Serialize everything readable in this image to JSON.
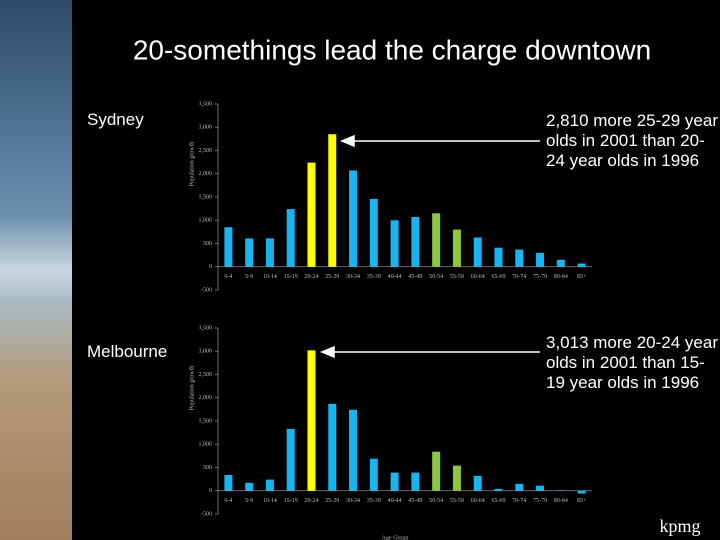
{
  "title": "20-somethings lead the charge downtown",
  "logo": "kpmg",
  "chart_data": [
    {
      "type": "bar",
      "title": "Sydney",
      "ylabel": "Population growth",
      "annotation": "2,810 more 25-29 year olds in 2001 than 20-24 year olds in 1996",
      "categories": [
        "0-4",
        "5-9",
        "10-14",
        "15-19",
        "20-24",
        "25-29",
        "30-34",
        "35-39",
        "40-44",
        "45-49",
        "50-54",
        "55-59",
        "60-64",
        "65-69",
        "70-74",
        "75-79",
        "80-84",
        "85+"
      ],
      "values": [
        850,
        610,
        610,
        1240,
        2240,
        2850,
        2070,
        1460,
        1000,
        1070,
        1150,
        800,
        630,
        410,
        370,
        300,
        150,
        70
      ],
      "colors": [
        "#19b5f0",
        "#19b5f0",
        "#19b5f0",
        "#19b5f0",
        "#ffff00",
        "#ffff00",
        "#19b5f0",
        "#19b5f0",
        "#19b5f0",
        "#19b5f0",
        "#8dc63f",
        "#8dc63f",
        "#19b5f0",
        "#19b5f0",
        "#19b5f0",
        "#19b5f0",
        "#19b5f0",
        "#19b5f0"
      ],
      "ylim": [
        -500,
        3500
      ],
      "yticks": [
        -500,
        0,
        500,
        {
          "value": 1000,
          "label": "1,000"
        },
        {
          "value": 1500,
          "label": "1,500"
        },
        {
          "value": 2000,
          "label": "2,000"
        },
        {
          "value": 2500,
          "label": "2,500"
        },
        {
          "value": 3000,
          "label": "3,000"
        },
        {
          "value": 3500,
          "label": "3,500"
        }
      ]
    },
    {
      "type": "bar",
      "title": "Melbourne",
      "ylabel": "Population growth",
      "xlabel": "Age Group",
      "annotation": "3,013 more 20-24 year olds in 2001 than 15-19 year olds in 1996",
      "categories": [
        "0-4",
        "5-9",
        "10-14",
        "15-19",
        "20-24",
        "25-29",
        "30-34",
        "35-39",
        "40-44",
        "45-49",
        "50-54",
        "55-59",
        "60-64",
        "65-69",
        "70-74",
        "75-79",
        "80-84",
        "85+"
      ],
      "values": [
        340,
        170,
        240,
        1330,
        3020,
        1870,
        1740,
        690,
        390,
        390,
        840,
        540,
        320,
        40,
        150,
        110,
        10,
        -60
      ],
      "colors": [
        "#19b5f0",
        "#19b5f0",
        "#19b5f0",
        "#19b5f0",
        "#ffff00",
        "#19b5f0",
        "#19b5f0",
        "#19b5f0",
        "#19b5f0",
        "#19b5f0",
        "#8dc63f",
        "#8dc63f",
        "#19b5f0",
        "#19b5f0",
        "#19b5f0",
        "#19b5f0",
        "#19b5f0",
        "#19b5f0"
      ],
      "ylim": [
        -500,
        3500
      ],
      "yticks": [
        -500,
        0,
        500,
        {
          "value": 1000,
          "label": "1,000"
        },
        {
          "value": 1500,
          "label": "1,500"
        },
        {
          "value": 2000,
          "label": "2,000"
        },
        {
          "value": 2500,
          "label": "2,500"
        },
        {
          "value": 3000,
          "label": "3,000"
        },
        {
          "value": 3500,
          "label": "3,500"
        }
      ]
    }
  ]
}
